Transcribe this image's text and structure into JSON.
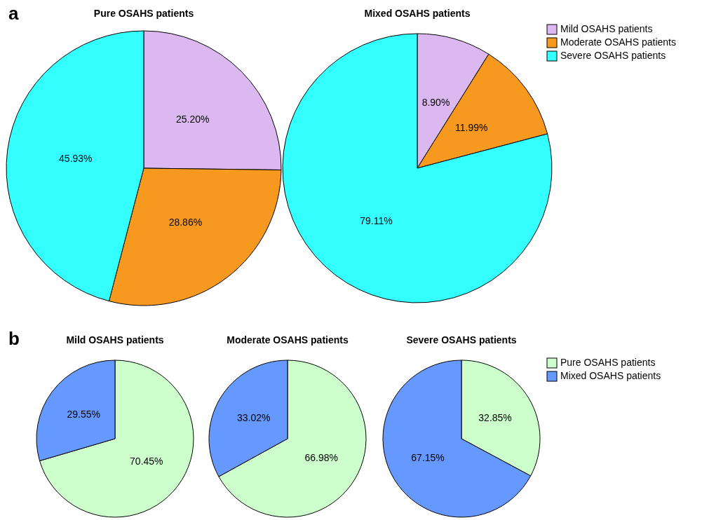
{
  "chart_data": [
    {
      "type": "pie",
      "title": "Pure OSAHS patients",
      "categories": [
        null,
        null,
        null
      ],
      "values": [
        25.2,
        28.86,
        45.93
      ],
      "value_labels": [
        "25.20%",
        "28.86%",
        "45.93%"
      ],
      "colors": [
        "#dcb8f0",
        "#f7991f",
        "#33ffff"
      ],
      "annotations": [
        "a"
      ]
    },
    {
      "type": "pie",
      "title": "Mixed OSAHS patients",
      "categories": [
        "Mild OSAHS patients",
        "Moderate OSAHS patients",
        "Severe OSAHS patients"
      ],
      "values": [
        8.9,
        11.99,
        79.11
      ],
      "value_labels": [
        "8.90%",
        "11.99%",
        "79.11%"
      ],
      "colors": [
        "#dcb8f0",
        "#f7991f",
        "#33ffff"
      ],
      "legend": "right"
    },
    {
      "type": "pie",
      "title": "Mild OSAHS patients",
      "categories": [
        null,
        null
      ],
      "values": [
        70.45,
        29.55
      ],
      "value_labels": [
        "70.45%",
        "29.55%"
      ],
      "colors": [
        "#ccffcc",
        "#6699ff"
      ],
      "annotations": [
        "b"
      ]
    },
    {
      "type": "pie",
      "title": "Moderate OSAHS patients",
      "categories": [
        null,
        null
      ],
      "values": [
        66.98,
        33.02
      ],
      "value_labels": [
        "66.98%",
        "33.02%"
      ],
      "colors": [
        "#ccffcc",
        "#6699ff"
      ]
    },
    {
      "type": "pie",
      "title": "Severe OSAHS patients",
      "categories": [
        "Pure OSAHS patients",
        "Mixed OSAHS patients"
      ],
      "values": [
        32.85,
        67.15
      ],
      "value_labels": [
        "32.85%",
        "67.15%"
      ],
      "colors": [
        "#ccffcc",
        "#6699ff"
      ],
      "legend": "right"
    }
  ]
}
